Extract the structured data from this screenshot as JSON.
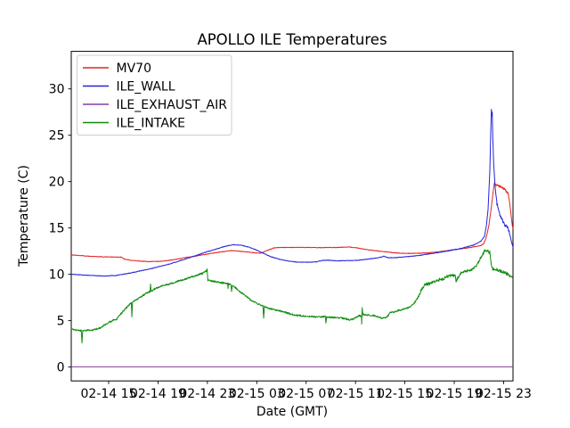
{
  "chart_data": {
    "type": "line",
    "title": "APOLLO ILE Temperatures",
    "xlabel": "Date (GMT)",
    "ylabel": "Temperature (C)",
    "xlim_hours": [
      11.97,
      47.76
    ],
    "ylim": [
      -1.5,
      34.05
    ],
    "grid": false,
    "legend_position": "upper-left",
    "x_ticks": [
      {
        "label": "02-14 15",
        "hour": 15
      },
      {
        "label": "02-14 19",
        "hour": 19
      },
      {
        "label": "02-14 23",
        "hour": 23
      },
      {
        "label": "02-15 03",
        "hour": 27
      },
      {
        "label": "02-15 07",
        "hour": 31
      },
      {
        "label": "02-15 11",
        "hour": 35
      },
      {
        "label": "02-15 15",
        "hour": 39
      },
      {
        "label": "02-15 19",
        "hour": 43
      },
      {
        "label": "02-15 23",
        "hour": 47
      }
    ],
    "y_ticks": [
      0,
      5,
      10,
      15,
      20,
      25,
      30
    ],
    "legend_entries": [
      "MV70",
      "ILE_WALL",
      "ILE_EXHAUST_AIR",
      "ILE_INTAKE"
    ],
    "series": [
      {
        "name": "MV70",
        "color": "#e62222",
        "noise": [
          [
            11.97,
            46.28,
            0.03
          ],
          [
            46.28,
            47.45,
            0.12
          ]
        ],
        "points": [
          [
            11.97,
            12.1
          ],
          [
            13.4,
            11.95
          ],
          [
            14.9,
            11.87
          ],
          [
            16.05,
            11.85
          ],
          [
            16.3,
            11.62
          ],
          [
            17.0,
            11.48
          ],
          [
            18.1,
            11.38
          ],
          [
            19.2,
            11.4
          ],
          [
            19.9,
            11.5
          ],
          [
            20.99,
            11.75
          ],
          [
            22.43,
            12.05
          ],
          [
            23.5,
            12.3
          ],
          [
            24.3,
            12.45
          ],
          [
            24.9,
            12.55
          ],
          [
            25.5,
            12.5
          ],
          [
            26.2,
            12.42
          ],
          [
            26.9,
            12.3
          ],
          [
            27.3,
            12.27
          ],
          [
            27.9,
            12.6
          ],
          [
            28.4,
            12.85
          ],
          [
            29.0,
            12.9
          ],
          [
            30.7,
            12.9
          ],
          [
            32.0,
            12.88
          ],
          [
            33.5,
            12.9
          ],
          [
            34.55,
            12.95
          ],
          [
            35.1,
            12.85
          ],
          [
            35.8,
            12.68
          ],
          [
            36.9,
            12.5
          ],
          [
            38.3,
            12.3
          ],
          [
            39.5,
            12.25
          ],
          [
            40.7,
            12.3
          ],
          [
            41.9,
            12.45
          ],
          [
            43.1,
            12.68
          ],
          [
            44.1,
            12.85
          ],
          [
            45.15,
            13.1
          ],
          [
            45.38,
            13.3
          ],
          [
            45.6,
            14.0
          ],
          [
            45.81,
            15.3
          ],
          [
            46.0,
            17.2
          ],
          [
            46.15,
            18.9
          ],
          [
            46.25,
            19.85
          ],
          [
            46.4,
            19.6
          ],
          [
            46.75,
            19.45
          ],
          [
            47.1,
            19.15
          ],
          [
            47.38,
            18.75
          ],
          [
            47.5,
            17.6
          ],
          [
            47.62,
            16.2
          ],
          [
            47.7,
            15.3
          ],
          [
            47.76,
            14.9
          ]
        ]
      },
      {
        "name": "ILE_WALL",
        "color": "#2222dd",
        "noise": [
          [
            11.97,
            45.5,
            0.03
          ],
          [
            46.35,
            47.5,
            0.17
          ]
        ],
        "points": [
          [
            11.97,
            10.0
          ],
          [
            13.0,
            9.92
          ],
          [
            14.5,
            9.82
          ],
          [
            15.6,
            9.87
          ],
          [
            17.0,
            10.2
          ],
          [
            18.45,
            10.62
          ],
          [
            19.9,
            11.1
          ],
          [
            21.35,
            11.7
          ],
          [
            22.8,
            12.35
          ],
          [
            24.25,
            12.95
          ],
          [
            24.7,
            13.1
          ],
          [
            25.15,
            13.2
          ],
          [
            25.7,
            13.15
          ],
          [
            26.3,
            12.95
          ],
          [
            26.85,
            12.7
          ],
          [
            27.4,
            12.35
          ],
          [
            28.05,
            11.95
          ],
          [
            28.75,
            11.65
          ],
          [
            29.5,
            11.45
          ],
          [
            30.25,
            11.32
          ],
          [
            31.1,
            11.3
          ],
          [
            31.85,
            11.35
          ],
          [
            32.3,
            11.5
          ],
          [
            32.9,
            11.52
          ],
          [
            33.5,
            11.45
          ],
          [
            34.3,
            11.48
          ],
          [
            35.1,
            11.5
          ],
          [
            35.9,
            11.62
          ],
          [
            36.6,
            11.75
          ],
          [
            37.1,
            11.85
          ],
          [
            37.3,
            11.95
          ],
          [
            37.65,
            11.78
          ],
          [
            38.25,
            11.8
          ],
          [
            38.85,
            11.87
          ],
          [
            39.55,
            11.95
          ],
          [
            40.25,
            12.05
          ],
          [
            40.95,
            12.2
          ],
          [
            41.7,
            12.35
          ],
          [
            42.4,
            12.5
          ],
          [
            43.15,
            12.68
          ],
          [
            43.85,
            12.9
          ],
          [
            44.55,
            13.15
          ],
          [
            45.15,
            13.55
          ],
          [
            45.45,
            14.1
          ],
          [
            45.6,
            15.2
          ],
          [
            45.74,
            17.0
          ],
          [
            45.88,
            21.0
          ],
          [
            45.96,
            25.5
          ],
          [
            46.01,
            27.8
          ],
          [
            46.05,
            27.1
          ],
          [
            46.08,
            27.5
          ],
          [
            46.12,
            24.8
          ],
          [
            46.2,
            21.8
          ],
          [
            46.32,
            19.3
          ],
          [
            46.46,
            17.6
          ],
          [
            46.68,
            16.5
          ],
          [
            46.9,
            15.8
          ],
          [
            47.11,
            15.3
          ],
          [
            47.33,
            15.0
          ],
          [
            47.47,
            14.5
          ],
          [
            47.62,
            13.6
          ],
          [
            47.76,
            12.9
          ]
        ]
      },
      {
        "name": "ILE_EXHAUST_AIR",
        "color": "#8040a0",
        "noise": [],
        "points": [
          [
            11.97,
            0.02
          ],
          [
            47.76,
            0.02
          ]
        ]
      },
      {
        "name": "ILE_INTAKE",
        "color": "#0f8c0f",
        "noise": [
          [
            11.97,
            40.2,
            0.09
          ],
          [
            40.2,
            43.3,
            0.17
          ],
          [
            43.3,
            45.35,
            0.13
          ],
          [
            45.35,
            46.02,
            0.2
          ],
          [
            46.02,
            47.76,
            0.16
          ]
        ],
        "points": [
          [
            11.97,
            4.05
          ],
          [
            12.55,
            3.95
          ],
          [
            12.78,
            3.92
          ],
          [
            12.84,
            2.6
          ],
          [
            12.9,
            3.92
          ],
          [
            13.2,
            3.95
          ],
          [
            13.77,
            4.0
          ],
          [
            14.28,
            4.2
          ],
          [
            14.86,
            4.7
          ],
          [
            15.36,
            5.05
          ],
          [
            15.65,
            5.15
          ],
          [
            16.0,
            5.75
          ],
          [
            16.37,
            6.3
          ],
          [
            16.73,
            6.8
          ],
          [
            16.84,
            6.9
          ],
          [
            16.88,
            5.4
          ],
          [
            16.93,
            6.95
          ],
          [
            17.1,
            7.2
          ],
          [
            17.45,
            7.4
          ],
          [
            17.8,
            7.75
          ],
          [
            18.15,
            8.05
          ],
          [
            18.36,
            8.15
          ],
          [
            18.39,
            8.9
          ],
          [
            18.44,
            8.2
          ],
          [
            18.7,
            8.4
          ],
          [
            19.2,
            8.7
          ],
          [
            19.9,
            8.95
          ],
          [
            20.6,
            9.25
          ],
          [
            21.35,
            9.55
          ],
          [
            22.05,
            9.85
          ],
          [
            22.6,
            10.1
          ],
          [
            22.9,
            10.35
          ],
          [
            22.98,
            10.55
          ],
          [
            23.03,
            9.35
          ],
          [
            23.37,
            9.25
          ],
          [
            23.88,
            9.15
          ],
          [
            24.38,
            9.05
          ],
          [
            24.64,
            9.0
          ],
          [
            24.67,
            8.5
          ],
          [
            24.72,
            8.95
          ],
          [
            24.9,
            8.9
          ],
          [
            24.96,
            8.15
          ],
          [
            25.02,
            8.75
          ],
          [
            25.25,
            8.6
          ],
          [
            25.7,
            8.05
          ],
          [
            26.2,
            7.6
          ],
          [
            26.6,
            7.15
          ],
          [
            27.1,
            6.8
          ],
          [
            27.5,
            6.6
          ],
          [
            27.56,
            5.3
          ],
          [
            27.62,
            6.5
          ],
          [
            28.05,
            6.3
          ],
          [
            28.6,
            6.15
          ],
          [
            29.15,
            5.95
          ],
          [
            29.65,
            5.75
          ],
          [
            30.15,
            5.6
          ],
          [
            30.75,
            5.5
          ],
          [
            31.45,
            5.45
          ],
          [
            32.15,
            5.4
          ],
          [
            32.55,
            5.45
          ],
          [
            32.6,
            4.75
          ],
          [
            32.66,
            5.4
          ],
          [
            33.6,
            5.3
          ],
          [
            34.0,
            5.25
          ],
          [
            34.5,
            5.1
          ],
          [
            34.85,
            5.2
          ],
          [
            35.3,
            5.55
          ],
          [
            35.48,
            5.5
          ],
          [
            35.5,
            4.6
          ],
          [
            35.54,
            6.4
          ],
          [
            35.6,
            5.7
          ],
          [
            36.0,
            5.6
          ],
          [
            36.5,
            5.55
          ],
          [
            37.0,
            5.3
          ],
          [
            37.3,
            5.25
          ],
          [
            37.6,
            5.45
          ],
          [
            37.8,
            5.9
          ],
          [
            38.16,
            5.95
          ],
          [
            38.45,
            6.1
          ],
          [
            38.8,
            6.2
          ],
          [
            39.17,
            6.35
          ],
          [
            39.53,
            6.6
          ],
          [
            39.82,
            7.0
          ],
          [
            40.1,
            7.6
          ],
          [
            40.4,
            8.5
          ],
          [
            40.62,
            8.9
          ],
          [
            41.05,
            9.0
          ],
          [
            41.55,
            9.35
          ],
          [
            42.05,
            9.5
          ],
          [
            42.5,
            9.8
          ],
          [
            42.86,
            9.9
          ],
          [
            43.1,
            9.75
          ],
          [
            43.14,
            9.3
          ],
          [
            43.25,
            9.5
          ],
          [
            43.55,
            10.15
          ],
          [
            44.0,
            10.35
          ],
          [
            44.4,
            10.5
          ],
          [
            44.8,
            10.9
          ],
          [
            45.0,
            11.4
          ],
          [
            45.22,
            12.0
          ],
          [
            45.44,
            12.45
          ],
          [
            45.66,
            12.55
          ],
          [
            45.88,
            12.35
          ],
          [
            45.99,
            11.2
          ],
          [
            46.1,
            10.6
          ],
          [
            46.45,
            10.5
          ],
          [
            46.8,
            10.3
          ],
          [
            47.2,
            10.1
          ],
          [
            47.45,
            9.9
          ],
          [
            47.76,
            9.65
          ]
        ]
      }
    ]
  }
}
